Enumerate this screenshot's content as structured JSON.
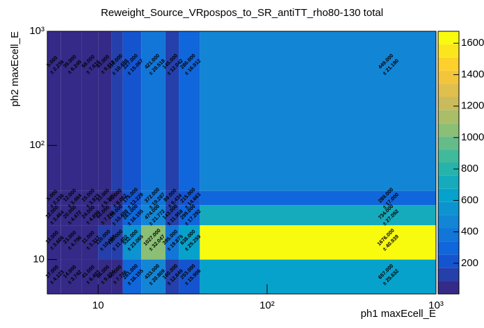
{
  "chart_data": {
    "type": "heatmap",
    "title": "Reweight_Source_VRpospos_to_SR_antiTT_rho80-130 total",
    "xlabel": "ph1 maxEcell_E",
    "ylabel": "ph2 maxEcell_E",
    "xlog": true,
    "ylog": true,
    "xlim": [
      5,
      1000
    ],
    "ylim": [
      5,
      1000
    ],
    "xticks": [
      10,
      {
        "value": 100,
        "label": "10²"
      },
      {
        "value": 1000,
        "label": "10³"
      }
    ],
    "yticks": [
      10,
      {
        "value": 100,
        "label": "10²"
      },
      {
        "value": 1000,
        "label": "10³"
      }
    ],
    "xbins": [
      5,
      6,
      8,
      10,
      12,
      14,
      18,
      25,
      30,
      40,
      1000
    ],
    "ybins": [
      5,
      10,
      20,
      30,
      40,
      1000
    ],
    "values": [
      [
        17,
        14,
        41,
        86,
        60,
        261,
        433,
        160,
        253,
        657
      ],
      [
        13,
        23,
        11,
        110,
        130,
        532,
        1027,
        395,
        638,
        1676
      ],
      [
        12,
        20,
        24,
        60,
        110,
        261,
        474,
        143,
        299,
        734
      ],
      [
        5,
        12,
        15,
        33,
        65,
        175,
        372,
        89,
        215,
        289
      ],
      [
        5,
        39,
        58,
        83,
        110,
        227,
        421,
        145,
        286,
        449
      ]
    ],
    "value_labels": [
      [
        "17.000",
        "14.000",
        "41.000",
        "86.000",
        "60.000",
        "261.000",
        "433.000",
        "160.000",
        "253.000",
        "657.000"
      ],
      [
        "13.000",
        "23.000",
        "11.000",
        "110.000",
        "130.000",
        "532.000",
        "1027.000",
        "395.000",
        "638.000",
        "1676.000"
      ],
      [
        "12.000",
        "20.000",
        "24.000",
        "60.000",
        "110.000",
        "261.000",
        "474.000",
        "143.000",
        "299.000",
        "734.000"
      ],
      [
        "5.000",
        "12.000",
        "15.000",
        "33.000",
        "65.000",
        "175.000",
        "372.000",
        "89.000",
        "215.000",
        "289.000"
      ],
      [
        "5.000",
        "39.000",
        "58.000",
        "83.000",
        "110.000",
        "227.000",
        "421.000",
        "145.000",
        "286.000",
        "449.000"
      ]
    ],
    "error_labels": [
      [
        "± 4.123",
        "± 3.742",
        "± 6.403",
        "± 9.274",
        "± 7.746",
        "± 16.155",
        "± 20.809",
        "± 12.649",
        "± 15.906",
        "± 25.632"
      ],
      [
        "± 3.606",
        "± 4.796",
        "± 3.317",
        "± 10.488",
        "± 11.402",
        "± 23.065",
        "± 32.047",
        "± 19.875",
        "± 25.259",
        "± 40.939"
      ],
      [
        "± 3.464",
        "± 4.472",
        "± 4.899",
        "± 7.746",
        "± 10.488",
        "± 16.155",
        "± 21.772",
        "± 11.958",
        "± 17.292",
        "± 27.092"
      ],
      [
        "± 2.236",
        "± 3.464",
        "± 3.873",
        "± 5.745",
        "± 8.062",
        "± 13.229",
        "± 19.287",
        "± 9.434",
        "± 14.663",
        "± 17.000"
      ],
      [
        "± 2.236",
        "± 6.245",
        "± 7.616",
        "± 9.110",
        "± 10.488",
        "± 15.067",
        "± 20.518",
        "± 12.042",
        "± 16.912",
        "± 21.190"
      ]
    ],
    "zlim": [
      5,
      1676
    ],
    "zticks": [
      200,
      400,
      600,
      800,
      1000,
      1200,
      1400,
      1600
    ],
    "levels": 20,
    "colormap": [
      "#352a87",
      "#0f5cdd",
      "#1481d6",
      "#06a4ca",
      "#2eb7a4",
      "#87bf77",
      "#d1bb59",
      "#fec832",
      "#f9fb0e"
    ]
  }
}
